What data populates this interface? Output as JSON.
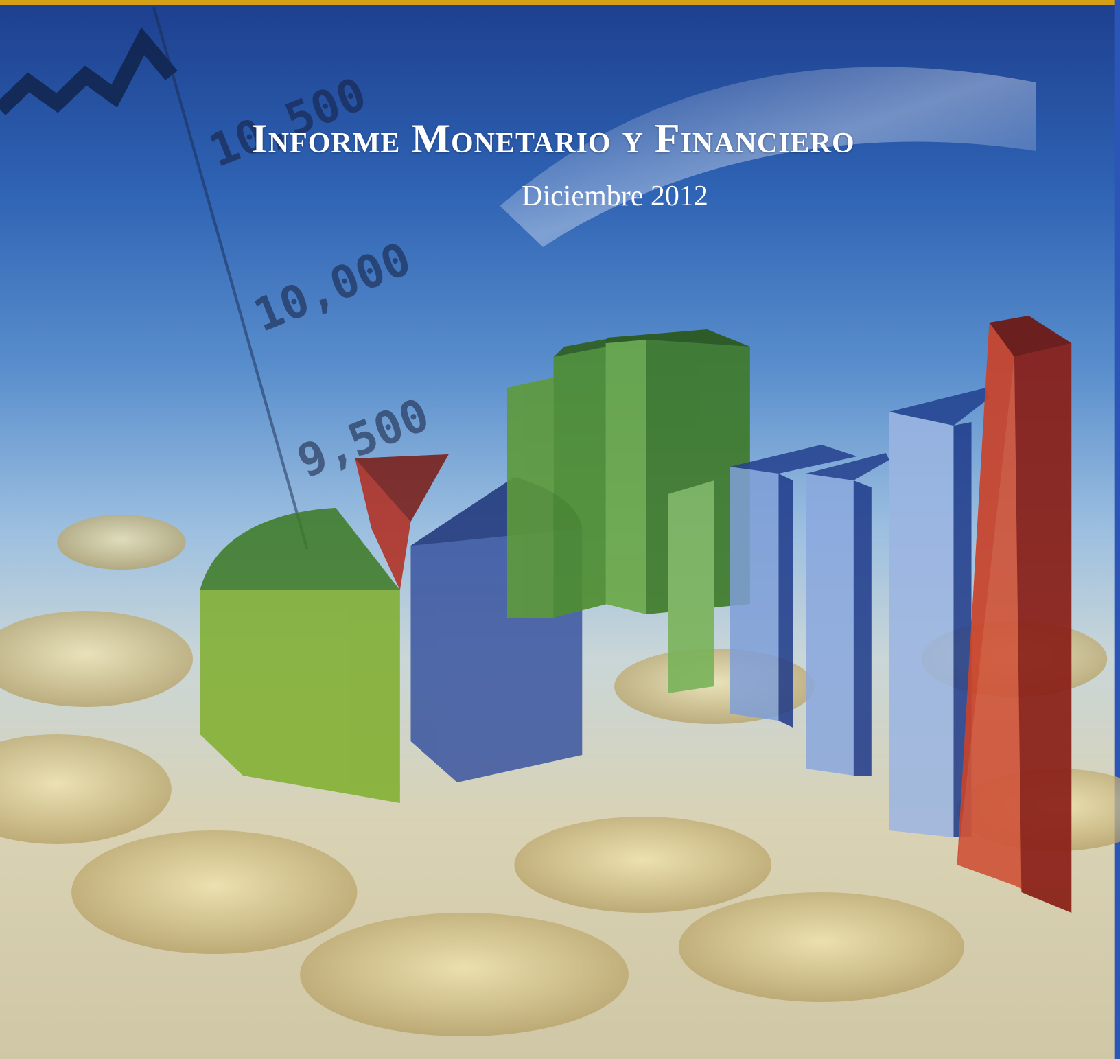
{
  "header": {
    "title": "Informe Monetario y Financiero",
    "subtitle": "Diciembre 2012"
  },
  "background": {
    "axis_labels": [
      "10,500",
      "10,000",
      "9,500"
    ]
  }
}
